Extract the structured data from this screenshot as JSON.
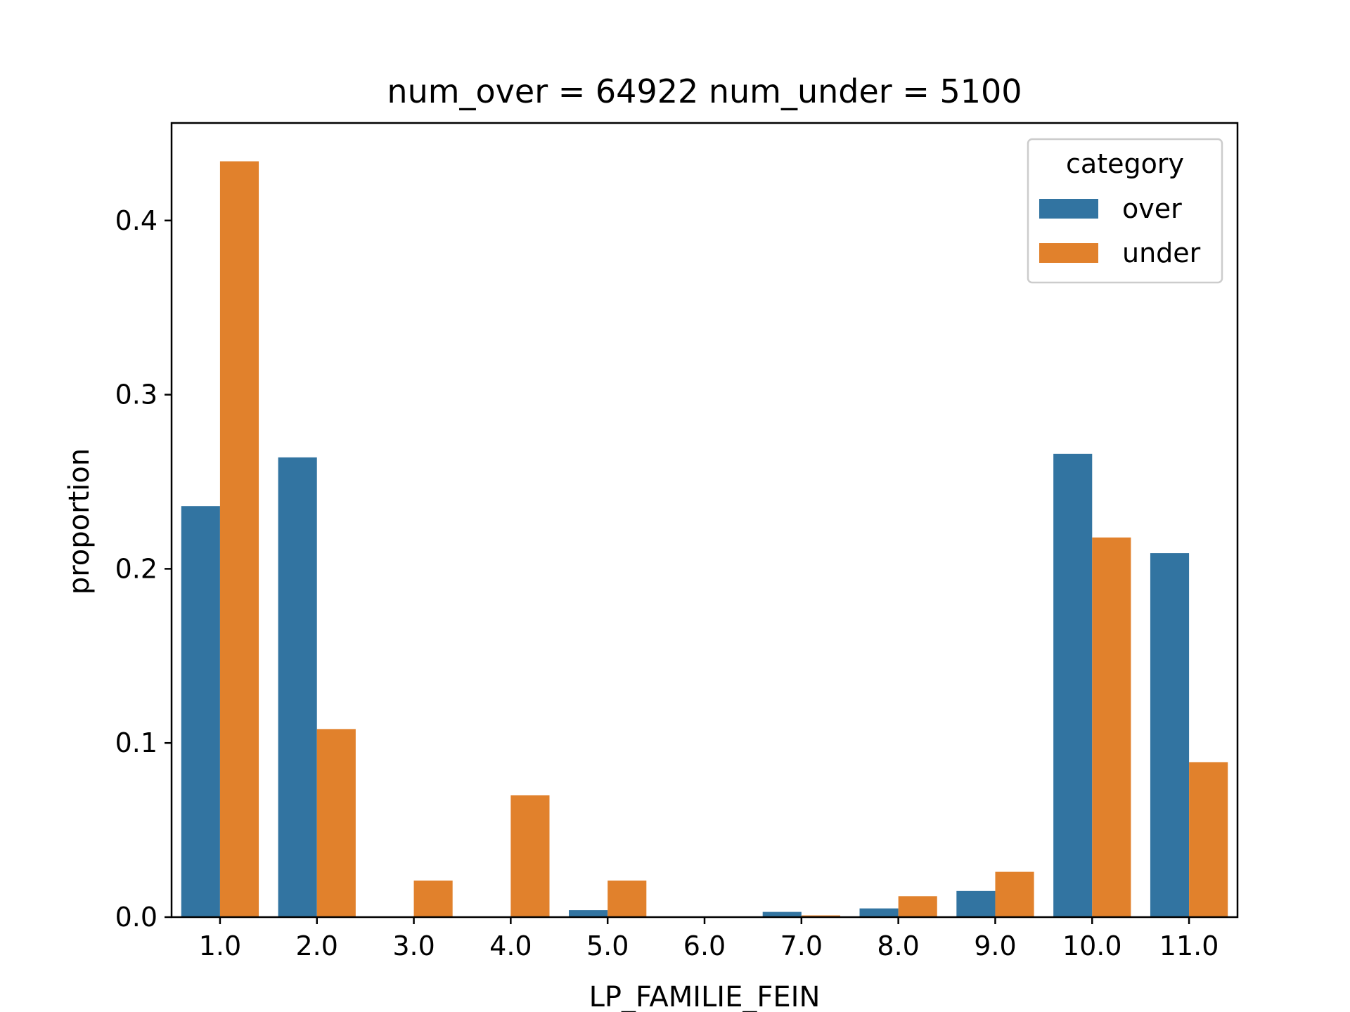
{
  "chart_data": {
    "type": "bar",
    "title": "num_over = 64922  num_under = 5100",
    "xlabel": "LP_FAMILIE_FEIN",
    "ylabel": "proportion",
    "categories": [
      "1.0",
      "2.0",
      "3.0",
      "4.0",
      "5.0",
      "6.0",
      "7.0",
      "8.0",
      "9.0",
      "10.0",
      "11.0"
    ],
    "series": [
      {
        "name": "over",
        "color": "#3274a1",
        "values": [
          0.236,
          0.264,
          0.0,
          0.0,
          0.004,
          0.0,
          0.003,
          0.005,
          0.015,
          0.266,
          0.209
        ]
      },
      {
        "name": "under",
        "color": "#e1812c",
        "values": [
          0.434,
          0.108,
          0.021,
          0.07,
          0.021,
          0.0,
          0.001,
          0.012,
          0.026,
          0.218,
          0.089
        ]
      }
    ],
    "yticks": [
      0.0,
      0.1,
      0.2,
      0.3,
      0.4
    ],
    "ytick_labels": [
      "0.0",
      "0.1",
      "0.2",
      "0.3",
      "0.4"
    ],
    "ylim": [
      0,
      0.456
    ],
    "grid": false,
    "legend": {
      "title": "category",
      "placement": "top-right"
    }
  }
}
